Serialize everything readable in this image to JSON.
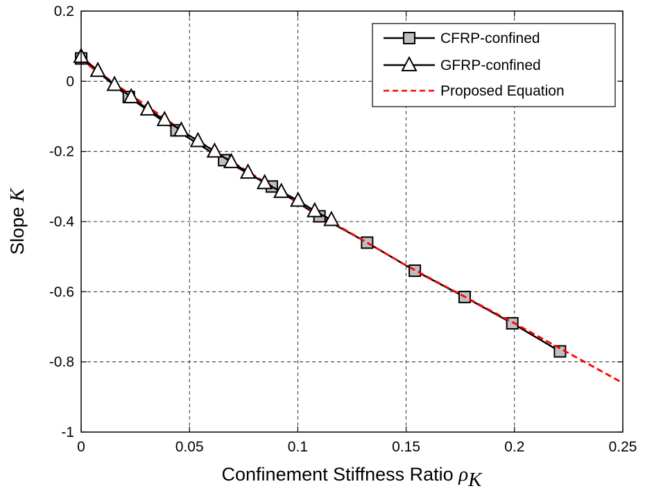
{
  "chart_data": {
    "type": "line",
    "title": "",
    "xlabel": {
      "text": "Confinement Stiffness Ratio ",
      "symbol": "ρ",
      "subscript": "K"
    },
    "ylabel": {
      "text": "Slope ",
      "symbol": "K"
    },
    "xlim": [
      0,
      0.25
    ],
    "ylim": [
      -1,
      0.2
    ],
    "x_ticks": [
      0,
      0.05,
      0.1,
      0.15,
      0.2,
      0.25
    ],
    "x_tick_labels": [
      "0",
      "0.05",
      "0.1",
      "0.15",
      "0.2",
      "0.25"
    ],
    "y_ticks": [
      -1,
      -0.8,
      -0.6,
      -0.4,
      -0.2,
      0,
      0.2
    ],
    "y_tick_labels": [
      "-1",
      "-0.8",
      "-0.6",
      "-0.4",
      "-0.2",
      "0",
      "0.2"
    ],
    "grid": true,
    "legend_position": "top-right",
    "series": [
      {
        "name": "CFRP-confined",
        "marker": "square",
        "line_style": "solid",
        "color": "#000000",
        "marker_fill": "#bfbfbf",
        "x": [
          0.0,
          0.022,
          0.044,
          0.066,
          0.088,
          0.11,
          0.132,
          0.154,
          0.177,
          0.199,
          0.221
        ],
        "y": [
          0.065,
          -0.045,
          -0.14,
          -0.225,
          -0.3,
          -0.385,
          -0.46,
          -0.54,
          -0.615,
          -0.69,
          -0.77
        ]
      },
      {
        "name": "GFRP-confined",
        "marker": "triangle",
        "line_style": "solid",
        "color": "#000000",
        "marker_fill": "#ffffff",
        "x": [
          0.0,
          0.0077,
          0.0154,
          0.0231,
          0.0308,
          0.0385,
          0.0462,
          0.0539,
          0.0616,
          0.0693,
          0.077,
          0.0847,
          0.0924,
          0.1001,
          0.1078,
          0.1155
        ],
        "y": [
          0.07,
          0.03,
          -0.01,
          -0.045,
          -0.08,
          -0.11,
          -0.14,
          -0.17,
          -0.2,
          -0.23,
          -0.26,
          -0.29,
          -0.315,
          -0.34,
          -0.37,
          -0.395
        ]
      },
      {
        "name": "Proposed Equation",
        "marker": "none",
        "line_style": "dashed",
        "color": "#ff0000",
        "x": [
          0.0,
          0.05,
          0.1,
          0.15,
          0.2,
          0.25
        ],
        "y": [
          0.06,
          -0.155,
          -0.345,
          -0.525,
          -0.69,
          -0.86
        ]
      }
    ]
  }
}
